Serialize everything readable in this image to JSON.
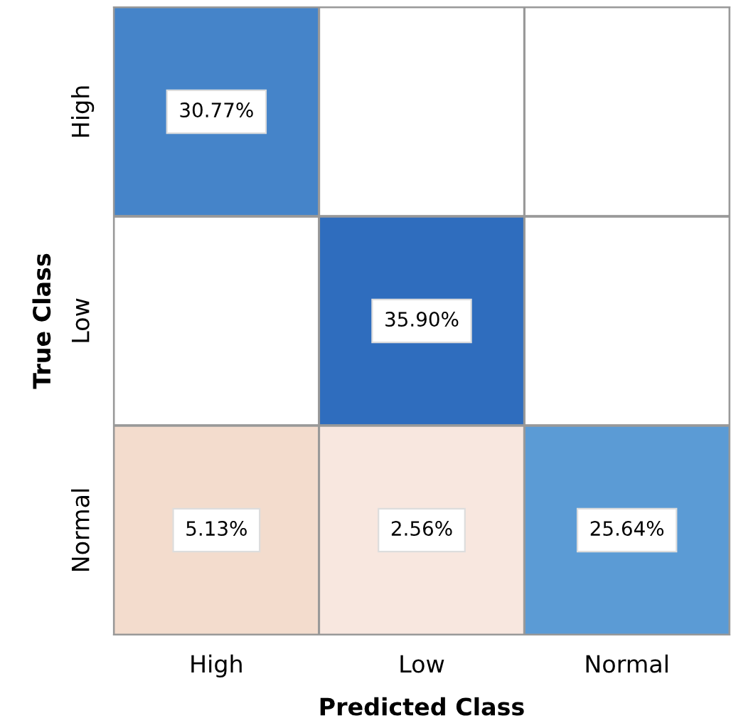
{
  "chart_data": {
    "type": "heatmap",
    "xlabel": "Predicted Class",
    "ylabel": "True Class",
    "categories": [
      "High",
      "Low",
      "Normal"
    ],
    "y_categories": [
      "High",
      "Low",
      "Normal"
    ],
    "cells": [
      [
        30.77,
        null,
        null
      ],
      [
        null,
        35.9,
        null
      ],
      [
        5.13,
        2.56,
        25.64
      ]
    ],
    "cell_labels": [
      [
        "30.77%",
        null,
        null
      ],
      [
        null,
        "35.90%",
        null
      ],
      [
        "5.13%",
        "2.56%",
        "25.64%"
      ]
    ],
    "grid": true
  }
}
